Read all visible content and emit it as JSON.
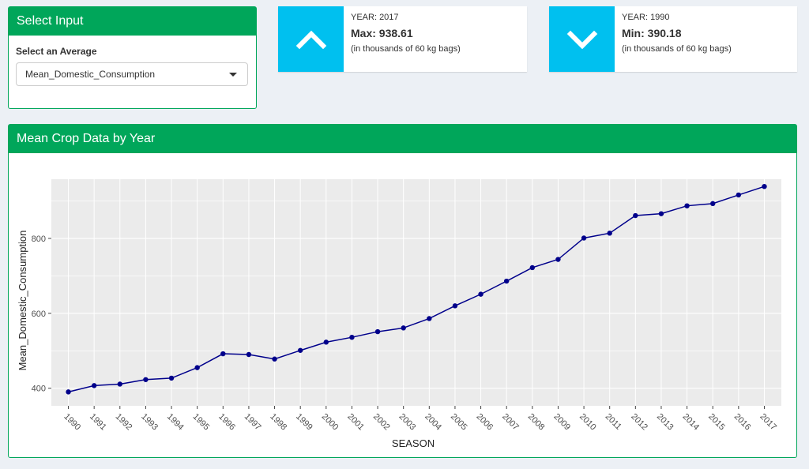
{
  "input_panel": {
    "title": "Select Input",
    "label": "Select an Average",
    "selected": "Mean_Domestic_Consumption"
  },
  "max_box": {
    "year": "YEAR: 2017",
    "value": "Max: 938.61",
    "subtitle": "(in thousands of 60 kg bags)",
    "icon": "chevron-up-icon"
  },
  "min_box": {
    "year": "YEAR: 1990",
    "value": "Min: 390.18",
    "subtitle": "(in thousands of 60 kg bags)",
    "icon": "chevron-down-icon"
  },
  "chart_panel": {
    "title": "Mean Crop Data by Year"
  },
  "colors": {
    "accent": "#00a65a",
    "info": "#00c0ef",
    "line": "#00008b",
    "plot_bg": "#ebebeb"
  },
  "chart_data": {
    "type": "line",
    "x": [
      1990,
      1991,
      1992,
      1993,
      1994,
      1995,
      1996,
      1997,
      1998,
      1999,
      2000,
      2001,
      2002,
      2003,
      2004,
      2005,
      2006,
      2007,
      2008,
      2009,
      2010,
      2011,
      2012,
      2013,
      2014,
      2015,
      2016,
      2017
    ],
    "categories": [
      "1990",
      "1991",
      "1992",
      "1993",
      "1994",
      "1995",
      "1996",
      "1997",
      "1998",
      "1999",
      "2000",
      "2001",
      "2002",
      "2003",
      "2004",
      "2005",
      "2006",
      "2007",
      "2008",
      "2009",
      "2010",
      "2011",
      "2012",
      "2013",
      "2014",
      "2015",
      "2016",
      "2017"
    ],
    "series": [
      {
        "values": [
          390.18,
          407,
          411,
          423,
          427,
          455,
          492,
          490,
          478,
          501,
          523,
          536,
          551,
          561,
          586,
          620,
          651,
          686,
          722,
          744,
          801,
          814,
          861,
          866,
          887,
          893,
          916,
          938.61
        ]
      }
    ],
    "xlabel": "SEASON",
    "ylabel": "Mean_Domestic_Consumption",
    "yticks": [
      400,
      600,
      800
    ],
    "ylim": [
      353,
      958
    ],
    "grid": true,
    "legend": "none"
  }
}
